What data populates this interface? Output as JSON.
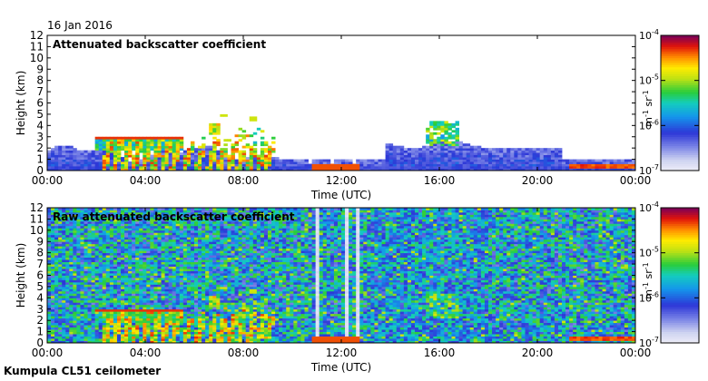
{
  "figure": {
    "date": "16 Jan 2016",
    "site": "Kumpula CL51 ceilometer"
  },
  "chart_data": [
    {
      "type": "heatmap",
      "title": "Attenuated backscatter coefficient",
      "xlabel": "Time (UTC)",
      "ylabel": "Height (km)",
      "xlim": [
        0,
        24
      ],
      "ylim": [
        0,
        12
      ],
      "xticks": [
        0,
        4,
        8,
        12,
        16,
        20,
        24
      ],
      "xtick_labels": [
        "00:00",
        "04:00",
        "08:00",
        "12:00",
        "16:00",
        "20:00",
        "00:00"
      ],
      "yticks": [
        0,
        1,
        2,
        3,
        4,
        5,
        6,
        7,
        8,
        9,
        10,
        11,
        12
      ],
      "ytick_labels": [
        "0",
        "1",
        "2",
        "3",
        "4",
        "5",
        "6",
        "7",
        "8",
        "9",
        "10",
        "11",
        "12"
      ],
      "colorbar": {
        "scale": "log",
        "range": [
          1e-07,
          0.0001
        ],
        "ticks": [
          {
            "base": "10",
            "exp": "-4",
            "value": -4
          },
          {
            "base": "10",
            "exp": "-5",
            "value": -5
          },
          {
            "base": "10",
            "exp": "-6",
            "value": -6
          },
          {
            "base": "10",
            "exp": "-7",
            "value": -7
          }
        ],
        "unit_m": "m",
        "unit_m_exp": "-1",
        "unit_sr": " sr",
        "unit_sr_exp": "-1"
      }
    },
    {
      "type": "heatmap",
      "title": "Raw attenuated backscatter coefficient",
      "xlabel": "Time (UTC)",
      "ylabel": "Height (km)",
      "xlim": [
        0,
        24
      ],
      "ylim": [
        0,
        12
      ],
      "xticks": [
        0,
        4,
        8,
        12,
        16,
        20,
        24
      ],
      "xtick_labels": [
        "00:00",
        "04:00",
        "08:00",
        "12:00",
        "16:00",
        "20:00",
        "00:00"
      ],
      "yticks": [
        0,
        1,
        2,
        3,
        4,
        5,
        6,
        7,
        8,
        9,
        10,
        11,
        12
      ],
      "ytick_labels": [
        "0",
        "1",
        "2",
        "3",
        "4",
        "5",
        "6",
        "7",
        "8",
        "9",
        "10",
        "11",
        "12"
      ],
      "colorbar": {
        "scale": "log",
        "range": [
          1e-07,
          0.0001
        ],
        "ticks": [
          {
            "base": "10",
            "exp": "-4",
            "value": -4
          },
          {
            "base": "10",
            "exp": "-5",
            "value": -5
          },
          {
            "base": "10",
            "exp": "-6",
            "value": -6
          },
          {
            "base": "10",
            "exp": "-7",
            "value": -7
          }
        ],
        "unit_m": "m",
        "unit_m_exp": "-1",
        "unit_sr": " sr",
        "unit_sr_exp": "-1"
      }
    }
  ]
}
